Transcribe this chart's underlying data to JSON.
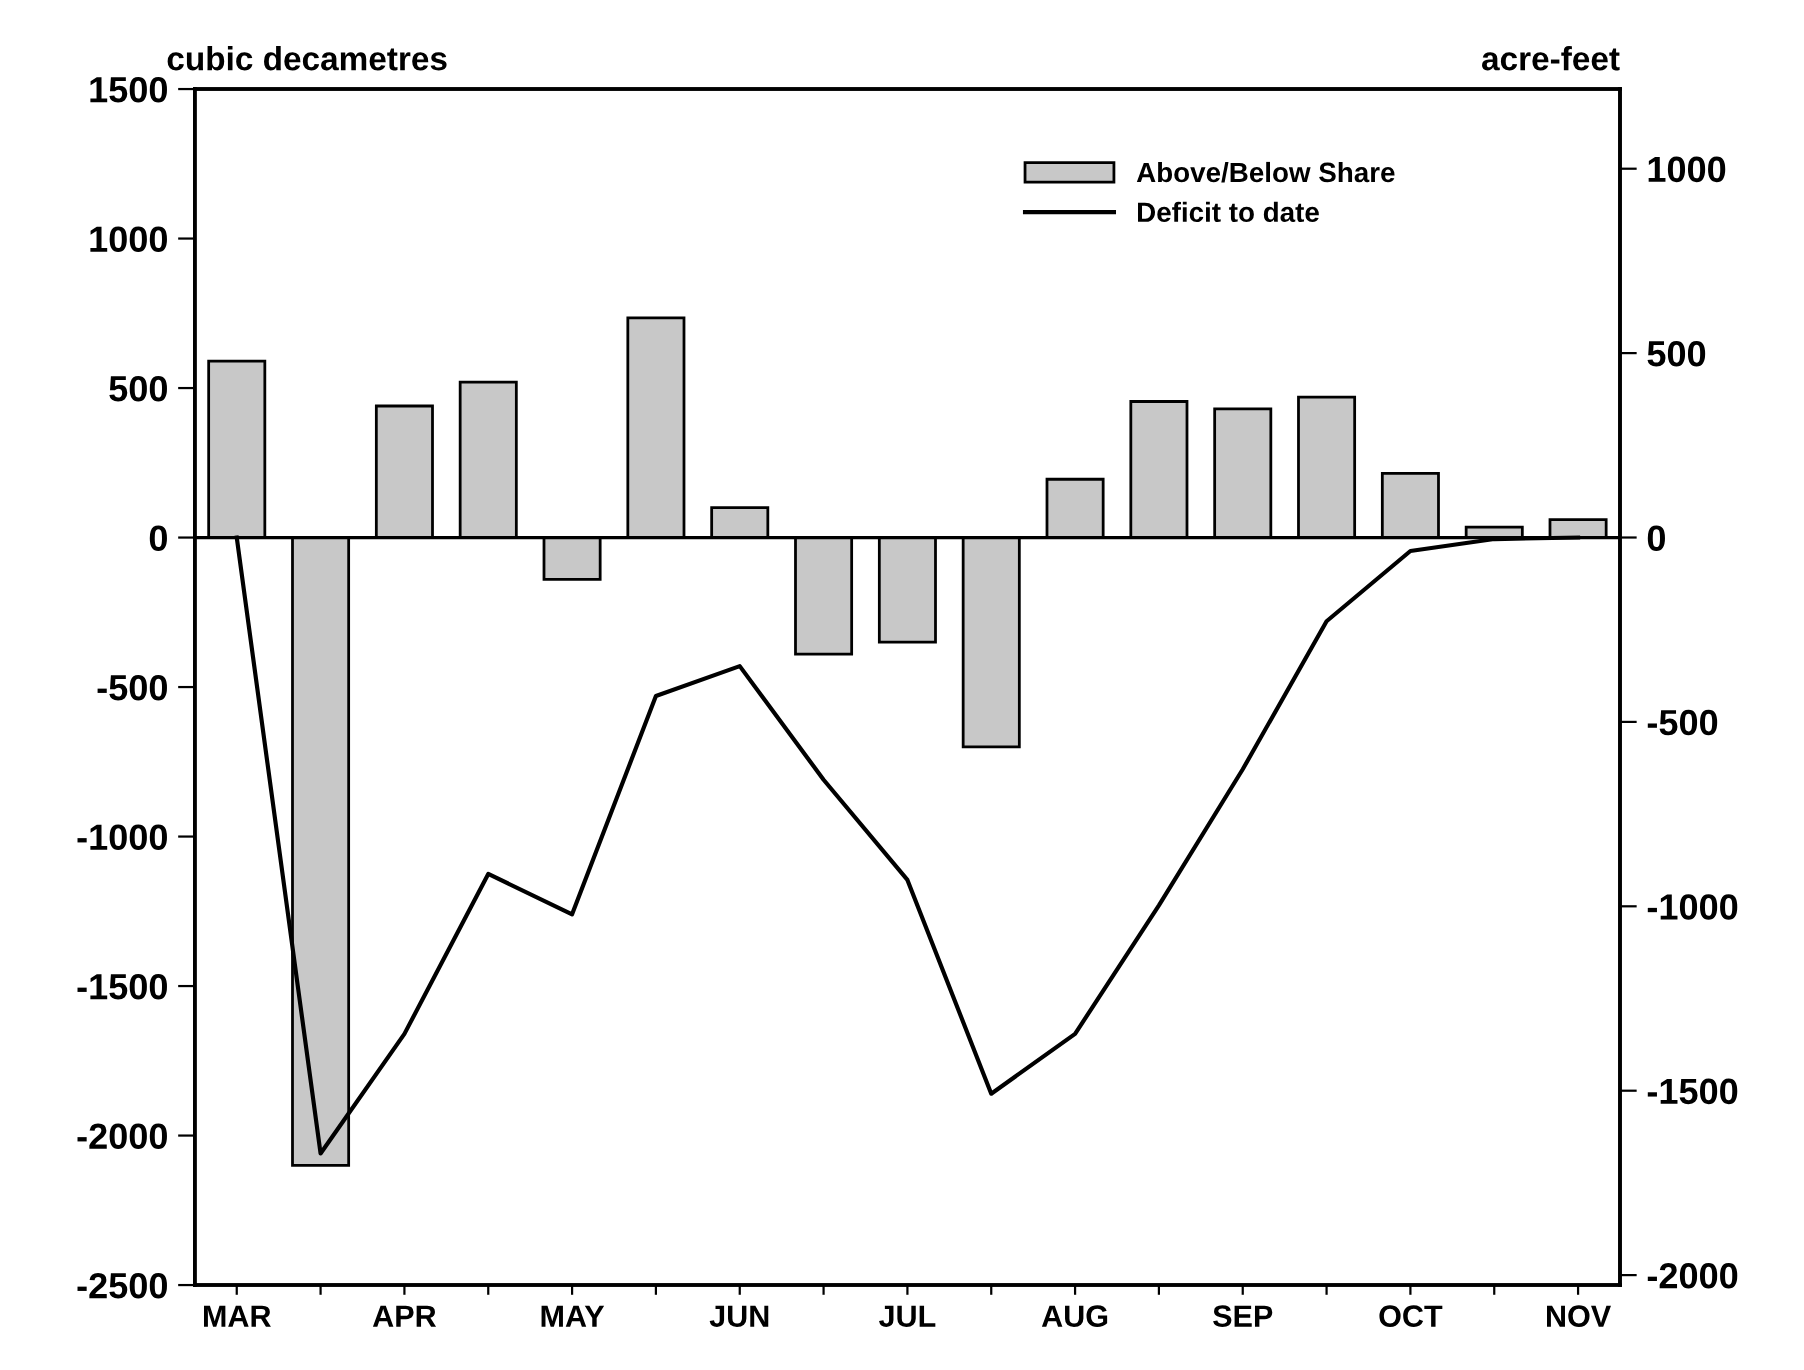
{
  "chart_data": {
    "type": "bar",
    "categories": [
      "MAR",
      null,
      "APR",
      null,
      "MAY",
      null,
      "JUN",
      null,
      "JUL",
      null,
      "AUG",
      null,
      "SEP",
      null,
      "OCT",
      null,
      "NOV"
    ],
    "series": [
      {
        "name": "Above/Below Share",
        "color": "#c8c8c8",
        "values": [
          590,
          -2100,
          440,
          520,
          -140,
          735,
          100,
          -390,
          -350,
          -700,
          195,
          455,
          430,
          470,
          215,
          35,
          60
        ]
      },
      {
        "name": "Deficit to date",
        "type": "line",
        "color": "#000000",
        "values": [
          0,
          -2060,
          -1660,
          -1125,
          -1260,
          -530,
          -430,
          -810,
          -1145,
          -1860,
          -1660,
          -1230,
          -775,
          -280,
          -45,
          -5,
          0
        ]
      }
    ],
    "ylabel": "cubic decametres",
    "y2label": "acre-feet",
    "ylim": [
      -2500,
      1500
    ],
    "yticks": [
      -2500,
      -2000,
      -1500,
      -1000,
      -500,
      0,
      500,
      1000,
      1500
    ],
    "y2lim": [
      -2027,
      1216
    ],
    "y2ticks": [
      -2000,
      -1500,
      -1000,
      -500,
      0,
      500,
      1000
    ],
    "ref_lines": [
      {
        "axis": "y",
        "value": 0
      }
    ],
    "grid": false,
    "legend": "top right",
    "marker": "none",
    "line_style": "solid"
  }
}
